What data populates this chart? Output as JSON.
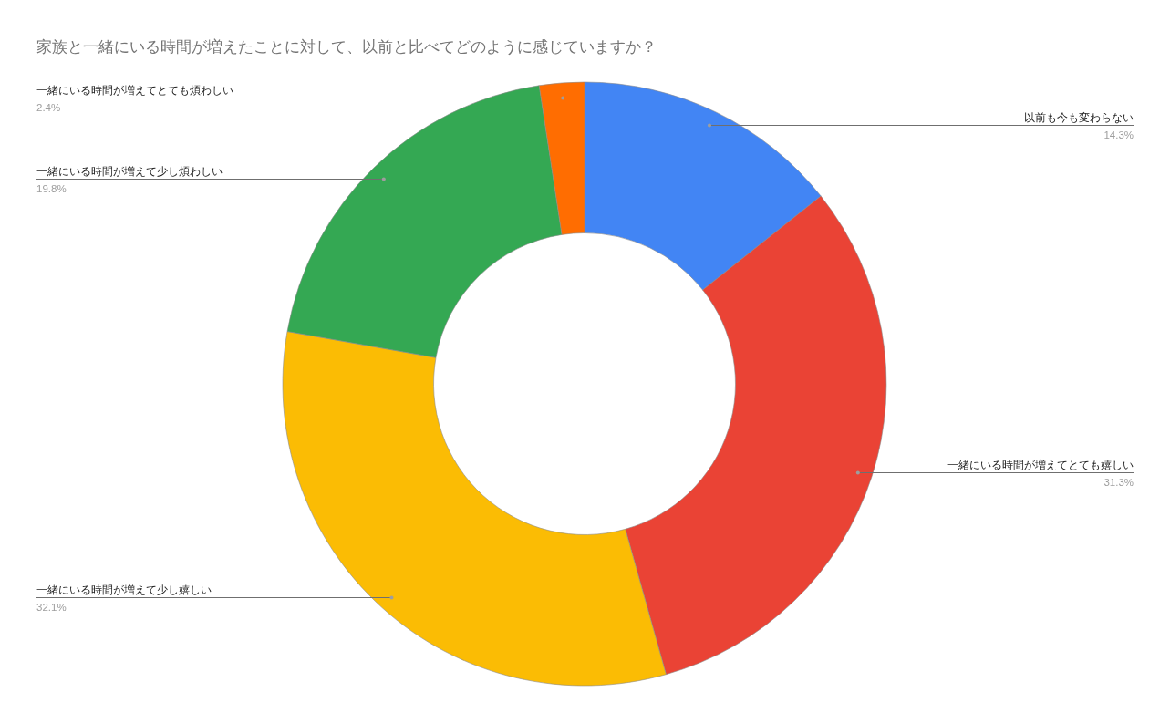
{
  "chart_data": {
    "type": "donut",
    "title": "家族と一緒にいる時間が増えたことに対して、以前と比べてどのように感じていますか？",
    "categories": [
      "以前も今も変わらない",
      "一緒にいる時間が増えてとても嬉しい",
      "一緒にいる時間が増えて少し嬉しい",
      "一緒にいる時間が増えて少し煩わしい",
      "一緒にいる時間が増えてとても煩わしい"
    ],
    "values": [
      14.3,
      31.3,
      32.1,
      19.8,
      2.4
    ],
    "colors": [
      "#4285f4",
      "#ea4335",
      "#fbbc04",
      "#34a853",
      "#ff6d01"
    ],
    "value_labels": [
      "14.3%",
      "31.3%",
      "32.1%",
      "19.8%",
      "2.4%"
    ]
  }
}
